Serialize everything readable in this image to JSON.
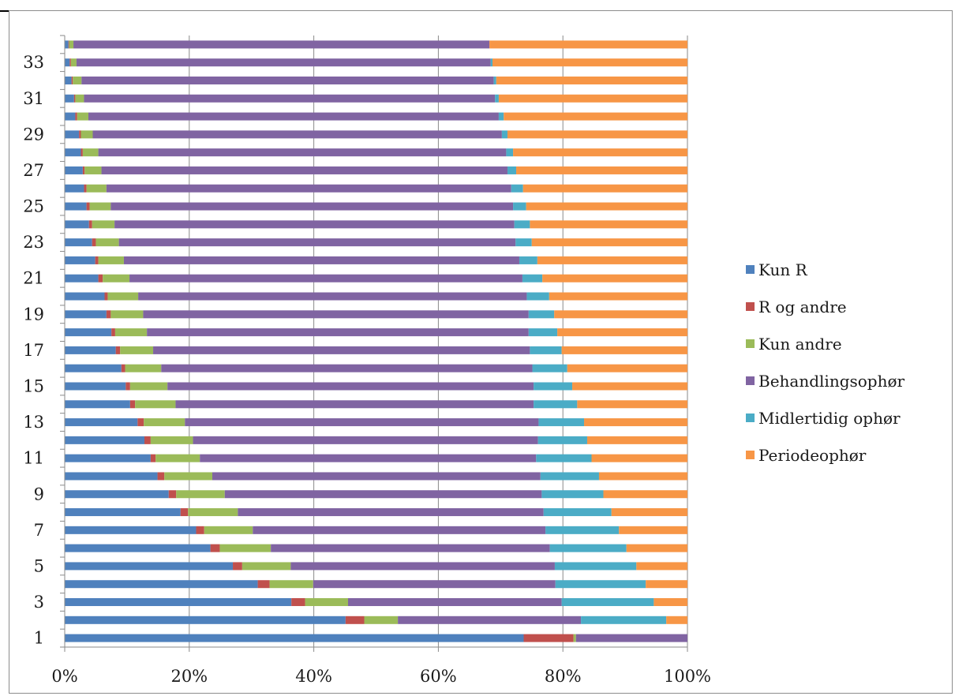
{
  "chart_data": {
    "type": "bar",
    "orientation": "horizontal",
    "stacked": "percent",
    "title": "",
    "xlabel": "",
    "ylabel": "",
    "xlim": [
      0,
      100
    ],
    "x_ticks": [
      "0%",
      "20%",
      "40%",
      "60%",
      "80%",
      "100%"
    ],
    "categories": [
      "1",
      "2",
      "3",
      "4",
      "5",
      "6",
      "7",
      "8",
      "9",
      "10",
      "11",
      "12",
      "13",
      "14",
      "15",
      "16",
      "17",
      "18",
      "19",
      "20",
      "21",
      "22",
      "23",
      "24",
      "25",
      "26",
      "27",
      "28",
      "29",
      "30",
      "31",
      "32",
      "33",
      "34"
    ],
    "y_tick_labels": [
      "1",
      "3",
      "5",
      "7",
      "9",
      "11",
      "13",
      "15",
      "17",
      "19",
      "21",
      "23",
      "25",
      "27",
      "29",
      "31",
      "33"
    ],
    "grid": "vertical major gridlines",
    "legend_position": "right",
    "series": [
      {
        "name": "Kun R",
        "color": "#4f81bd",
        "values": [
          73.7,
          45.1,
          36.4,
          31.0,
          27.0,
          23.4,
          21.1,
          18.6,
          16.7,
          14.9,
          13.8,
          12.8,
          11.7,
          10.5,
          9.8,
          9.1,
          8.2,
          7.5,
          6.7,
          6.4,
          5.4,
          4.9,
          4.4,
          3.9,
          3.5,
          3.1,
          2.9,
          2.6,
          2.3,
          1.7,
          1.5,
          1.1,
          0.8,
          0.6
        ]
      },
      {
        "name": "R og andre",
        "color": "#c0504d",
        "values": [
          8.0,
          3.0,
          2.2,
          1.9,
          1.5,
          1.5,
          1.3,
          1.2,
          1.2,
          1.1,
          0.8,
          1.0,
          1.0,
          0.8,
          0.7,
          0.6,
          0.7,
          0.6,
          0.7,
          0.5,
          0.7,
          0.5,
          0.6,
          0.5,
          0.5,
          0.4,
          0.3,
          0.3,
          0.3,
          0.3,
          0.2,
          0.2,
          0.2,
          0.1
        ]
      },
      {
        "name": "Kun andre",
        "color": "#9bbb59",
        "values": [
          0.4,
          5.4,
          6.9,
          7.0,
          7.8,
          8.2,
          7.8,
          8.0,
          7.8,
          7.7,
          7.1,
          6.8,
          6.6,
          6.5,
          6.0,
          5.8,
          5.3,
          5.1,
          5.2,
          4.9,
          4.3,
          4.1,
          3.7,
          3.6,
          3.4,
          3.2,
          2.7,
          2.5,
          1.9,
          1.8,
          1.4,
          1.4,
          0.9,
          0.7
        ]
      },
      {
        "name": "Behandlingsophør",
        "color": "#8064a2",
        "values": [
          17.9,
          29.4,
          34.3,
          38.9,
          42.4,
          44.8,
          47.0,
          49.1,
          50.9,
          52.7,
          54.0,
          55.4,
          56.8,
          57.5,
          58.8,
          59.6,
          60.5,
          61.3,
          61.9,
          62.4,
          63.1,
          63.5,
          63.7,
          64.2,
          64.6,
          65.0,
          65.2,
          65.5,
          65.7,
          65.9,
          66.0,
          66.2,
          66.7,
          66.8
        ]
      },
      {
        "name": "Midlertidig ophør",
        "color": "#4bacc6",
        "values": [
          0.0,
          13.7,
          14.8,
          14.5,
          13.1,
          12.3,
          11.8,
          10.9,
          9.9,
          9.4,
          8.9,
          7.9,
          7.3,
          7.0,
          6.2,
          5.6,
          5.1,
          4.6,
          4.1,
          3.6,
          3.2,
          2.9,
          2.6,
          2.5,
          2.1,
          1.9,
          1.4,
          1.1,
          0.9,
          0.8,
          0.6,
          0.4,
          0.3,
          0.0
        ]
      },
      {
        "name": "Periodeophør",
        "color": "#f79646",
        "values": [
          0.0,
          3.4,
          5.4,
          6.7,
          8.2,
          9.8,
          11.0,
          12.2,
          13.5,
          14.2,
          15.4,
          16.1,
          16.6,
          17.7,
          18.5,
          19.3,
          20.2,
          20.9,
          21.4,
          22.2,
          23.3,
          24.1,
          25.0,
          25.3,
          25.9,
          26.4,
          27.5,
          28.0,
          28.9,
          29.5,
          30.3,
          30.7,
          31.4,
          31.8
        ]
      }
    ]
  }
}
